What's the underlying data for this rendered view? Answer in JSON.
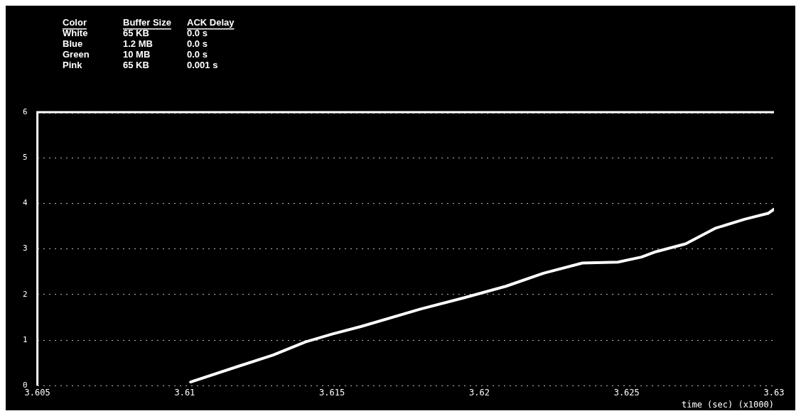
{
  "chart_data": {
    "type": "line",
    "xlabel": "time (sec) (x1000)",
    "annotations": [
      "Color",
      "Buffer Size",
      "ACK Delay",
      "White",
      "65 KB",
      "0.0 s",
      "Blue",
      "1.2 MB",
      "0.0 s",
      "Green",
      "10 MB",
      "0.0 s",
      "Pink",
      "65 KB",
      "0.001 s"
    ],
    "x": [
      3.6102,
      3.6118,
      3.613,
      3.6141,
      3.615,
      3.616,
      3.618,
      3.6195,
      3.6209,
      3.6222,
      3.6235,
      3.6247,
      3.6255,
      3.626,
      3.627,
      3.628,
      3.629,
      3.6298,
      3.63
    ],
    "series": [
      {
        "color": "#ffffff",
        "values": [
          0.08,
          0.42,
          0.67,
          0.96,
          1.13,
          1.3,
          1.68,
          1.93,
          2.18,
          2.47,
          2.69,
          2.71,
          2.82,
          2.94,
          3.11,
          3.45,
          3.65,
          3.78,
          3.87
        ]
      }
    ],
    "xlim": [
      3.605,
      3.63
    ],
    "xticks": [
      3.605,
      3.61,
      3.615,
      3.62,
      3.625,
      3.63
    ],
    "ylim": [
      0,
      6
    ],
    "yticks": [
      0,
      1,
      2,
      3,
      4,
      5,
      6
    ],
    "grid": "y",
    "legend": false,
    "marker": "none",
    "line_style": "solid"
  }
}
